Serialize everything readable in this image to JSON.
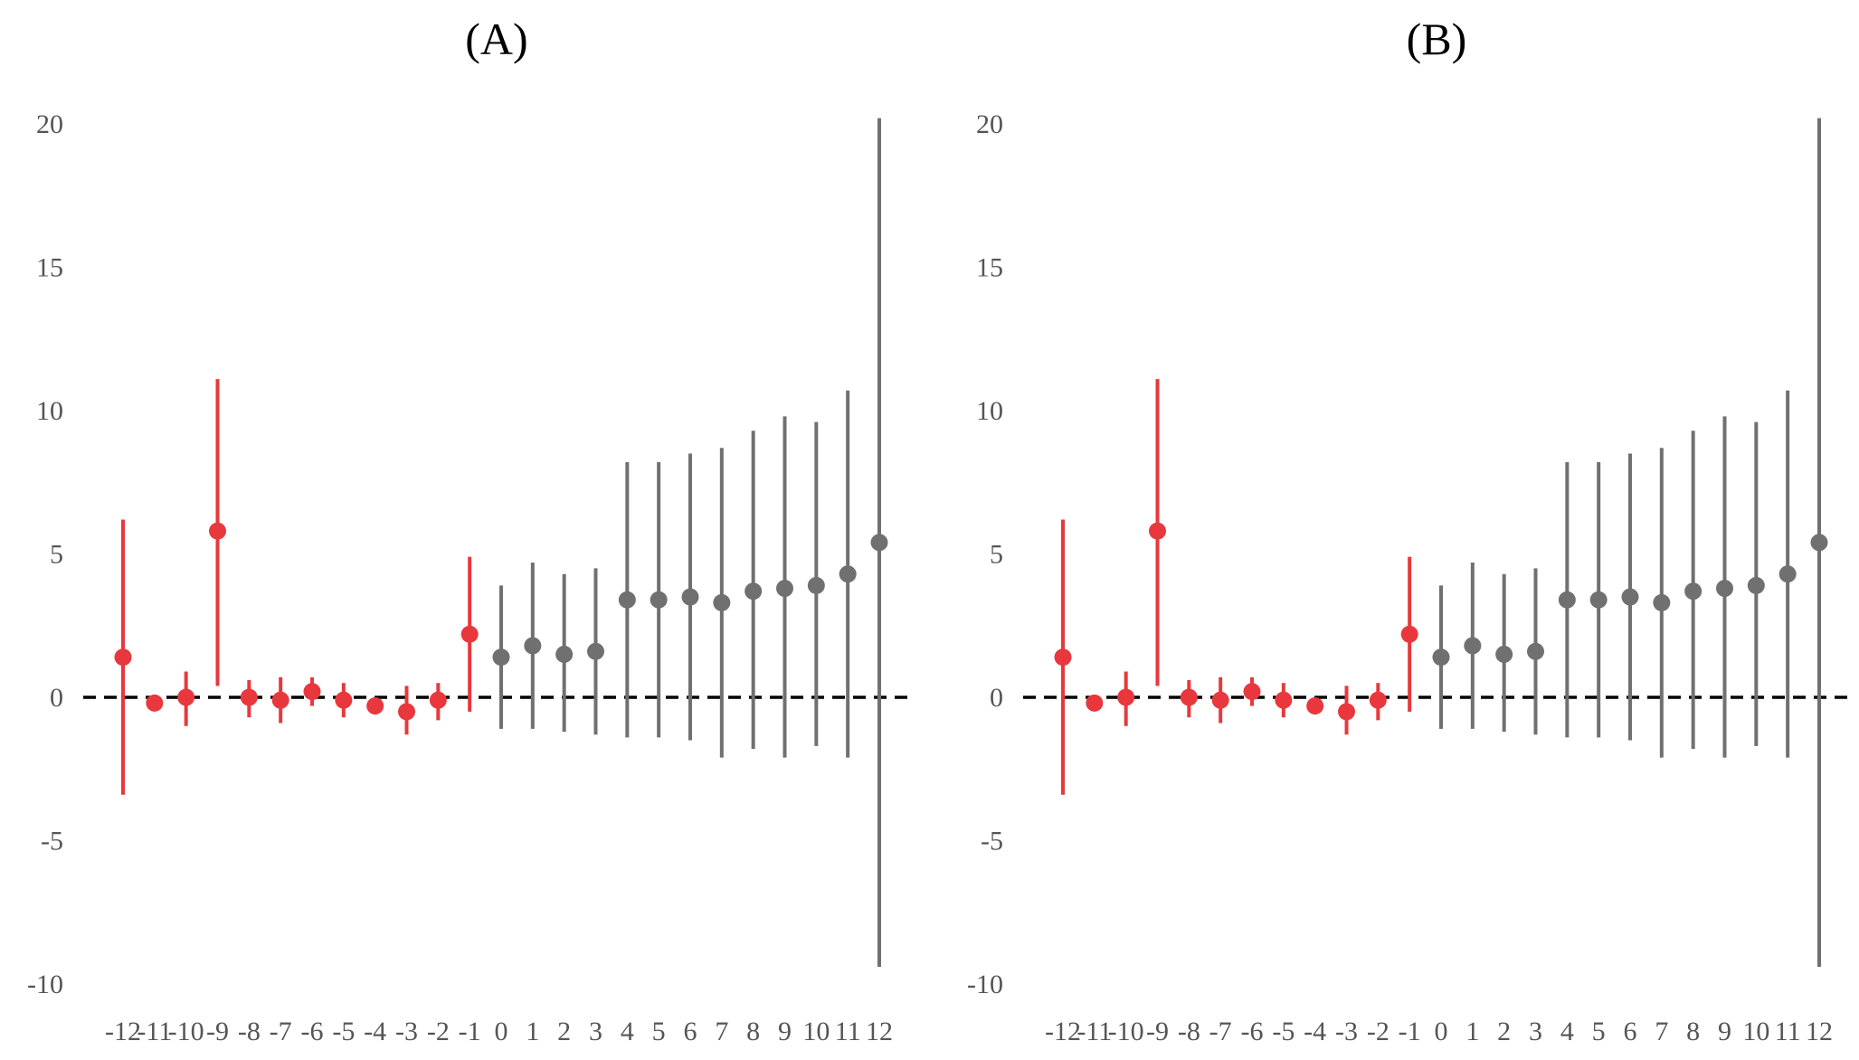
{
  "chart_data": [
    {
      "type": "scatter",
      "subtype": "point-range (coefficient plot)",
      "title": "(A)",
      "xlabel": "",
      "ylabel": "",
      "x": [
        -12,
        -11,
        -10,
        -9,
        -8,
        -7,
        -6,
        -5,
        -4,
        -3,
        -2,
        -1,
        0,
        1,
        2,
        3,
        4,
        5,
        6,
        7,
        8,
        9,
        10,
        11,
        12
      ],
      "x_tick_labels": [
        "-12",
        "-11",
        "-10",
        "-9",
        "-8",
        "-7",
        "-6",
        "-5",
        "-4",
        "-3",
        "-2",
        "-1",
        "0",
        "1",
        "2",
        "3",
        "4",
        "5",
        "6",
        "7",
        "8",
        "9",
        "10",
        "11",
        "12"
      ],
      "estimate": [
        1.4,
        -0.2,
        0.0,
        5.8,
        0.0,
        -0.1,
        0.2,
        -0.1,
        -0.3,
        -0.5,
        -0.1,
        2.2,
        1.4,
        1.8,
        1.5,
        1.6,
        3.4,
        3.4,
        3.5,
        3.3,
        3.7,
        3.8,
        3.9,
        4.3,
        5.4
      ],
      "ci_low": [
        -3.4,
        -0.3,
        -1.0,
        0.4,
        -0.7,
        -0.9,
        -0.3,
        -0.7,
        -0.6,
        -1.3,
        -0.8,
        -0.5,
        -1.1,
        -1.1,
        -1.2,
        -1.3,
        -1.4,
        -1.4,
        -1.5,
        -2.1,
        -1.8,
        -2.1,
        -1.7,
        -2.1,
        -9.4
      ],
      "ci_high": [
        6.2,
        -0.1,
        0.9,
        11.1,
        0.6,
        0.7,
        0.7,
        0.5,
        0.0,
        0.4,
        0.5,
        4.9,
        3.9,
        4.7,
        4.3,
        4.5,
        8.2,
        8.2,
        8.5,
        8.7,
        9.3,
        9.8,
        9.6,
        10.7,
        20.2
      ],
      "ylim": [
        -10,
        20
      ],
      "y_ticks": [
        -10,
        -5,
        0,
        5,
        10,
        15,
        20
      ],
      "reference_line": {
        "y": 0,
        "style": "dashed",
        "color": "#000000"
      },
      "colors": {
        "pre_period": "#E8383D",
        "post_period": "#707070"
      },
      "grid": false,
      "legend": "none"
    },
    {
      "type": "scatter",
      "subtype": "point-range (coefficient plot)",
      "title": "(B)",
      "xlabel": "",
      "ylabel": "",
      "x": [
        -12,
        -11,
        -10,
        -9,
        -8,
        -7,
        -6,
        -5,
        -4,
        -3,
        -2,
        -1,
        0,
        1,
        2,
        3,
        4,
        5,
        6,
        7,
        8,
        9,
        10,
        11,
        12
      ],
      "x_tick_labels": [
        "-12",
        "-11",
        "-10",
        "-9",
        "-8",
        "-7",
        "-6",
        "-5",
        "-4",
        "-3",
        "-2",
        "-1",
        "0",
        "1",
        "2",
        "3",
        "4",
        "5",
        "6",
        "7",
        "8",
        "9",
        "10",
        "11",
        "12"
      ],
      "estimate": [
        1.4,
        -0.2,
        0.0,
        5.8,
        0.0,
        -0.1,
        0.2,
        -0.1,
        -0.3,
        -0.5,
        -0.1,
        2.2,
        1.4,
        1.8,
        1.5,
        1.6,
        3.4,
        3.4,
        3.5,
        3.3,
        3.7,
        3.8,
        3.9,
        4.3,
        5.4
      ],
      "ci_low": [
        -3.4,
        -0.3,
        -1.0,
        0.4,
        -0.7,
        -0.9,
        -0.3,
        -0.7,
        -0.6,
        -1.3,
        -0.8,
        -0.5,
        -1.1,
        -1.1,
        -1.2,
        -1.3,
        -1.4,
        -1.4,
        -1.5,
        -2.1,
        -1.8,
        -2.1,
        -1.7,
        -2.1,
        -9.4
      ],
      "ci_high": [
        6.2,
        -0.1,
        0.9,
        11.1,
        0.6,
        0.7,
        0.7,
        0.5,
        0.0,
        0.4,
        0.5,
        4.9,
        3.9,
        4.7,
        4.3,
        4.5,
        8.2,
        8.2,
        8.5,
        8.7,
        9.3,
        9.8,
        9.6,
        10.7,
        20.2
      ],
      "ylim": [
        -10,
        20
      ],
      "y_ticks": [
        -10,
        -5,
        0,
        5,
        10,
        15,
        20
      ],
      "reference_line": {
        "y": 0,
        "style": "dashed",
        "color": "#000000"
      },
      "colors": {
        "pre_period": "#E8383D",
        "post_period": "#707070"
      },
      "grid": false,
      "legend": "none"
    }
  ]
}
